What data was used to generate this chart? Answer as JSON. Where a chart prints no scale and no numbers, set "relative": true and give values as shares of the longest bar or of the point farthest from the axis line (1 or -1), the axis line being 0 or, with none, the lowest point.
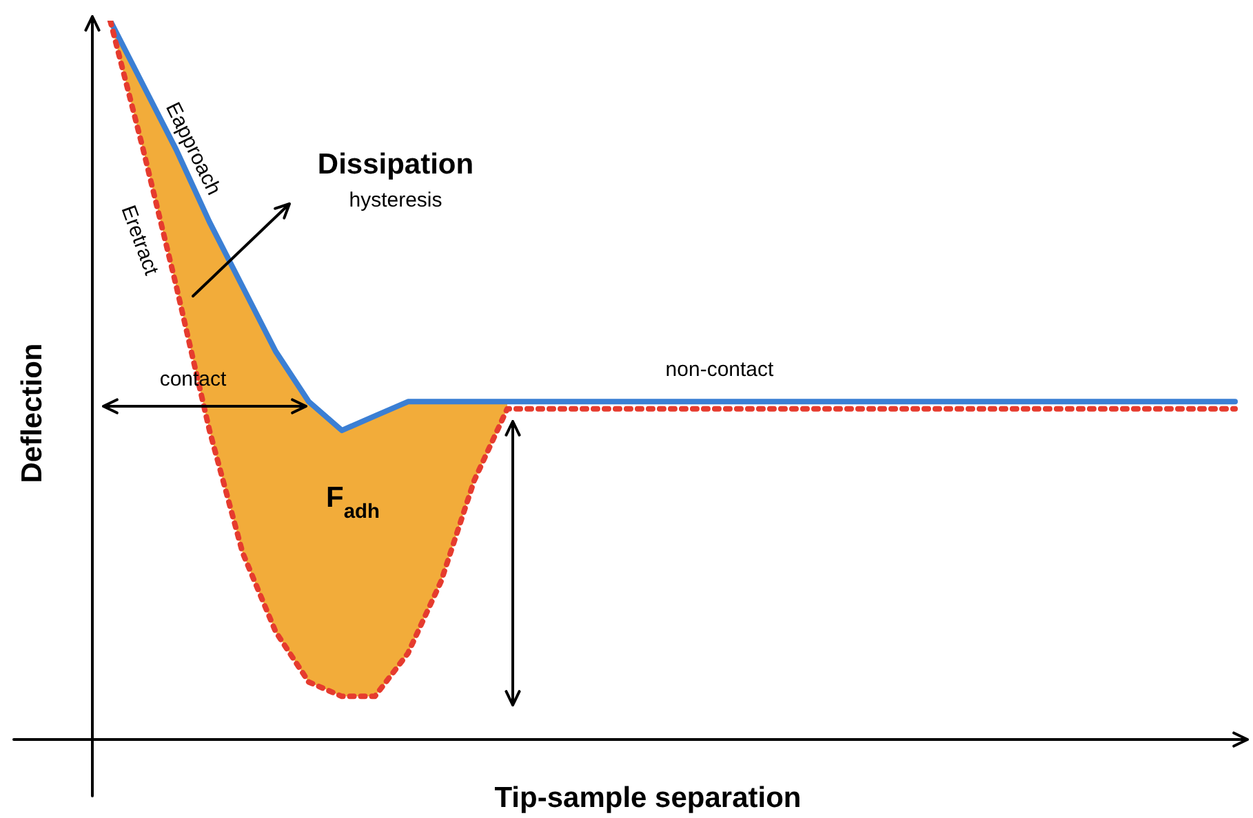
{
  "chart_data": {
    "type": "line",
    "relative": true,
    "xlabel": "Tip-sample separation",
    "ylabel": "Deflection",
    "categories": [
      null,
      null,
      null,
      null,
      null,
      null,
      null,
      null,
      null,
      null,
      null,
      null,
      null,
      null,
      null,
      null,
      null,
      null,
      null,
      null,
      null,
      null,
      null,
      null,
      null,
      null,
      null,
      null,
      null,
      null,
      null,
      null,
      null,
      null,
      null
    ],
    "series": [
      {
        "color": "#3b7fd4",
        "line_style": "solid",
        "values": [
          1.0,
          0.91,
          0.82,
          0.72,
          0.63,
          0.54,
          0.47,
          0.43,
          0.45,
          0.47,
          0.47,
          0.47,
          0.47,
          0.47,
          0.47,
          0.47,
          0.47,
          0.47,
          0.47,
          0.47,
          0.47,
          0.47,
          0.47,
          0.47,
          0.47,
          0.47,
          0.47,
          0.47,
          0.47,
          0.47,
          0.47,
          0.47,
          0.47,
          0.47,
          0.47
        ],
        "lower": [
          1.0,
          0.82,
          0.63,
          0.43,
          0.26,
          0.15,
          0.08,
          0.06,
          0.06,
          0.12,
          0.22,
          0.36,
          0.46,
          null,
          null,
          null,
          null,
          null,
          null,
          null,
          null,
          null,
          null,
          null,
          null,
          null,
          null,
          null,
          null,
          null,
          null,
          null,
          null,
          null,
          null
        ],
        "upper": [
          1.0,
          0.91,
          0.82,
          0.72,
          0.63,
          0.54,
          0.47,
          0.43,
          0.45,
          0.47,
          0.47,
          0.47,
          0.47,
          null,
          null,
          null,
          null,
          null,
          null,
          null,
          null,
          null,
          null,
          null,
          null,
          null,
          null,
          null,
          null,
          null,
          null,
          null,
          null,
          null,
          null
        ]
      },
      {
        "color": "#e63b2e",
        "line_style": "dotted",
        "values": [
          1.0,
          0.82,
          0.63,
          0.43,
          0.26,
          0.15,
          0.08,
          0.06,
          0.06,
          0.12,
          0.22,
          0.36,
          0.46,
          0.46,
          0.46,
          0.46,
          0.46,
          0.46,
          0.46,
          0.46,
          0.46,
          0.46,
          0.46,
          0.46,
          0.46,
          0.46,
          0.46,
          0.46,
          0.46,
          0.46,
          0.46,
          0.46,
          0.46,
          0.46,
          0.46
        ]
      }
    ],
    "annotations": [
      "Dissipation",
      "hysteresis",
      "contact",
      "non-contact",
      "F$_{adh}$",
      "Eapproach",
      "Eretract"
    ]
  }
}
